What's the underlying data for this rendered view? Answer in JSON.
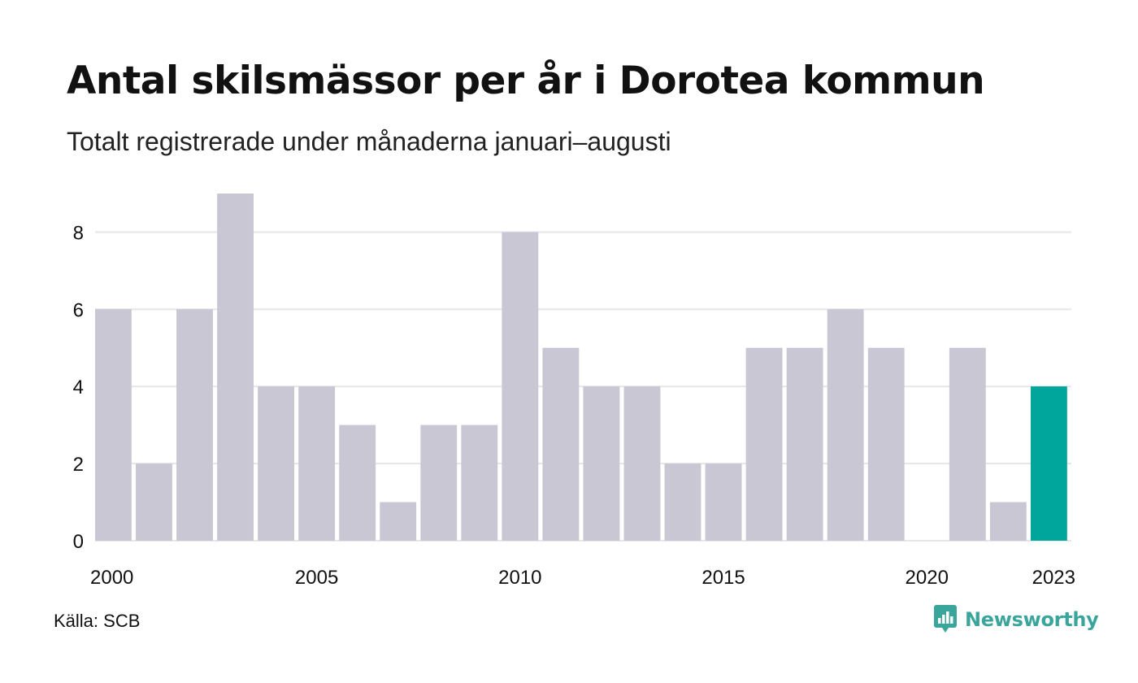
{
  "header": {
    "title": "Antal skilsmässor per år i Dorotea kommun",
    "subtitle": "Totalt registrerade under månaderna januari–augusti"
  },
  "footer": {
    "source": "Källa: SCB",
    "brand": "Newsworthy",
    "brand_icon": "newsworthy-logo-icon"
  },
  "colors": {
    "bar": "#c8c7d3",
    "highlight": "#00a69b",
    "grid": "#e6e6e9",
    "brand": "#3aa59b"
  },
  "chart_data": {
    "type": "bar",
    "categories": [
      "2000",
      "2001",
      "2002",
      "2003",
      "2004",
      "2005",
      "2006",
      "2007",
      "2008",
      "2009",
      "2010",
      "2011",
      "2012",
      "2013",
      "2014",
      "2015",
      "2016",
      "2017",
      "2018",
      "2019",
      "2020",
      "2021",
      "2022",
      "2023"
    ],
    "values": [
      6,
      2,
      6,
      9,
      4,
      4,
      3,
      1,
      3,
      3,
      8,
      5,
      4,
      4,
      2,
      2,
      5,
      5,
      6,
      5,
      0,
      5,
      1,
      4
    ],
    "highlight_category": "2023",
    "x_tick_labels": [
      "2000",
      "2005",
      "2010",
      "2015",
      "2020",
      "2023"
    ],
    "y_ticks": [
      0,
      2,
      4,
      6,
      8
    ],
    "ylim": [
      0,
      9
    ],
    "title": "Antal skilsmässor per år i Dorotea kommun",
    "subtitle": "Totalt registrerade under månaderna januari–augusti",
    "xlabel": "",
    "ylabel": "",
    "grid": true,
    "legend": "none"
  }
}
